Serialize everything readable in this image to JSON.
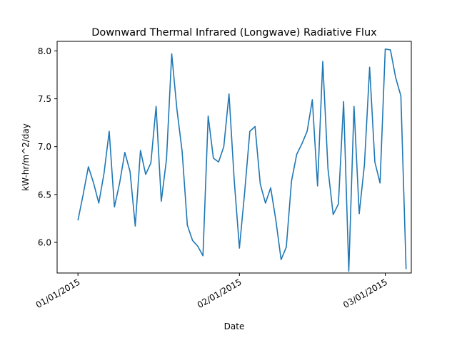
{
  "chart_data": {
    "type": "line",
    "title": "Downward Thermal Infrared (Longwave) Radiative Flux",
    "xlabel": "Date",
    "ylabel": "kW-hr/m^2/day",
    "ylim": [
      5.68,
      8.1
    ],
    "xlim": [
      "2014-12-28",
      "2015-03-06"
    ],
    "grid": false,
    "legend": "none",
    "line_color": "#1f77b4",
    "x_ticks": [
      {
        "date": "2015-01-01",
        "label": "01/01/2015"
      },
      {
        "date": "2015-02-01",
        "label": "02/01/2015"
      },
      {
        "date": "2015-03-01",
        "label": "03/01/2015"
      }
    ],
    "y_ticks": [
      {
        "value": 6.0,
        "label": "6.0"
      },
      {
        "value": 6.5,
        "label": "6.5"
      },
      {
        "value": 7.0,
        "label": "7.0"
      },
      {
        "value": 7.5,
        "label": "7.5"
      },
      {
        "value": 8.0,
        "label": "8.0"
      }
    ],
    "x": [
      "2015-01-01",
      "2015-01-02",
      "2015-01-03",
      "2015-01-04",
      "2015-01-05",
      "2015-01-06",
      "2015-01-07",
      "2015-01-08",
      "2015-01-09",
      "2015-01-10",
      "2015-01-11",
      "2015-01-12",
      "2015-01-13",
      "2015-01-14",
      "2015-01-15",
      "2015-01-16",
      "2015-01-17",
      "2015-01-18",
      "2015-01-19",
      "2015-01-20",
      "2015-01-21",
      "2015-01-22",
      "2015-01-23",
      "2015-01-24",
      "2015-01-25",
      "2015-01-26",
      "2015-01-27",
      "2015-01-28",
      "2015-01-29",
      "2015-01-30",
      "2015-01-31",
      "2015-02-01",
      "2015-02-02",
      "2015-02-03",
      "2015-02-04",
      "2015-02-05",
      "2015-02-06",
      "2015-02-07",
      "2015-02-08",
      "2015-02-09",
      "2015-02-10",
      "2015-02-11",
      "2015-02-12",
      "2015-02-13",
      "2015-02-14",
      "2015-02-15",
      "2015-02-16",
      "2015-02-17",
      "2015-02-18",
      "2015-02-19",
      "2015-02-20",
      "2015-02-21",
      "2015-02-22",
      "2015-02-23",
      "2015-02-24",
      "2015-02-25",
      "2015-02-26",
      "2015-02-27",
      "2015-02-28",
      "2015-03-01",
      "2015-03-02",
      "2015-03-03",
      "2015-03-04",
      "2015-03-05"
    ],
    "series": [
      {
        "values": [
          6.23,
          6.5,
          6.79,
          6.62,
          6.41,
          6.72,
          7.16,
          6.37,
          6.62,
          6.94,
          6.74,
          6.17,
          6.96,
          6.71,
          6.83,
          7.42,
          6.43,
          6.87,
          7.97,
          7.39,
          6.95,
          6.18,
          6.02,
          5.96,
          5.86,
          7.32,
          6.88,
          6.84,
          7.0,
          7.55,
          6.65,
          5.94,
          6.52,
          7.16,
          7.21,
          6.61,
          6.41,
          6.57,
          6.23,
          5.82,
          5.95,
          6.64,
          6.92,
          7.03,
          7.16,
          7.49,
          6.59,
          7.89,
          6.77,
          6.29,
          6.4,
          7.47,
          5.7,
          7.42,
          6.3,
          6.81,
          7.83,
          6.84,
          6.62,
          8.02,
          8.01,
          7.72,
          7.53,
          5.72
        ]
      }
    ]
  }
}
